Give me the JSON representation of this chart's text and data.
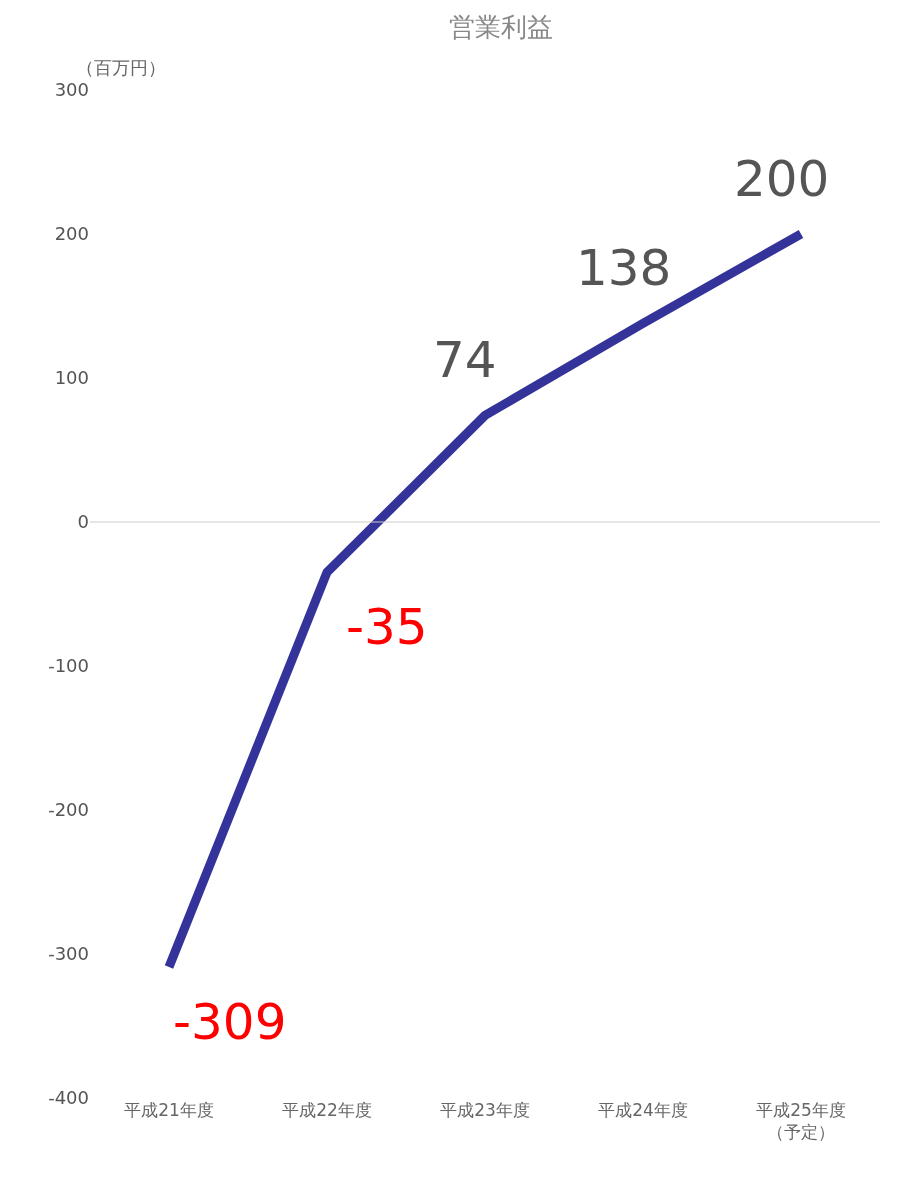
{
  "chart_data": {
    "type": "line",
    "title": "営業利益",
    "ylabel": "（百万円）",
    "categories": [
      "平成21年度",
      "平成22年度",
      "平成23年度",
      "平成24年度",
      "平成25年度（予定）"
    ],
    "series": [
      {
        "color": "#333399",
        "values": [
          -309,
          -35,
          74,
          138,
          200
        ]
      }
    ],
    "ylim": [
      -400,
      300
    ],
    "yticks": [
      -400,
      -300,
      -200,
      -100,
      0,
      100,
      200,
      300
    ],
    "ref_lines": [
      {
        "axis": "y",
        "value": 0,
        "color": "#cccccc"
      }
    ],
    "data_labels": true,
    "marker": "none",
    "line_style": "solid"
  }
}
